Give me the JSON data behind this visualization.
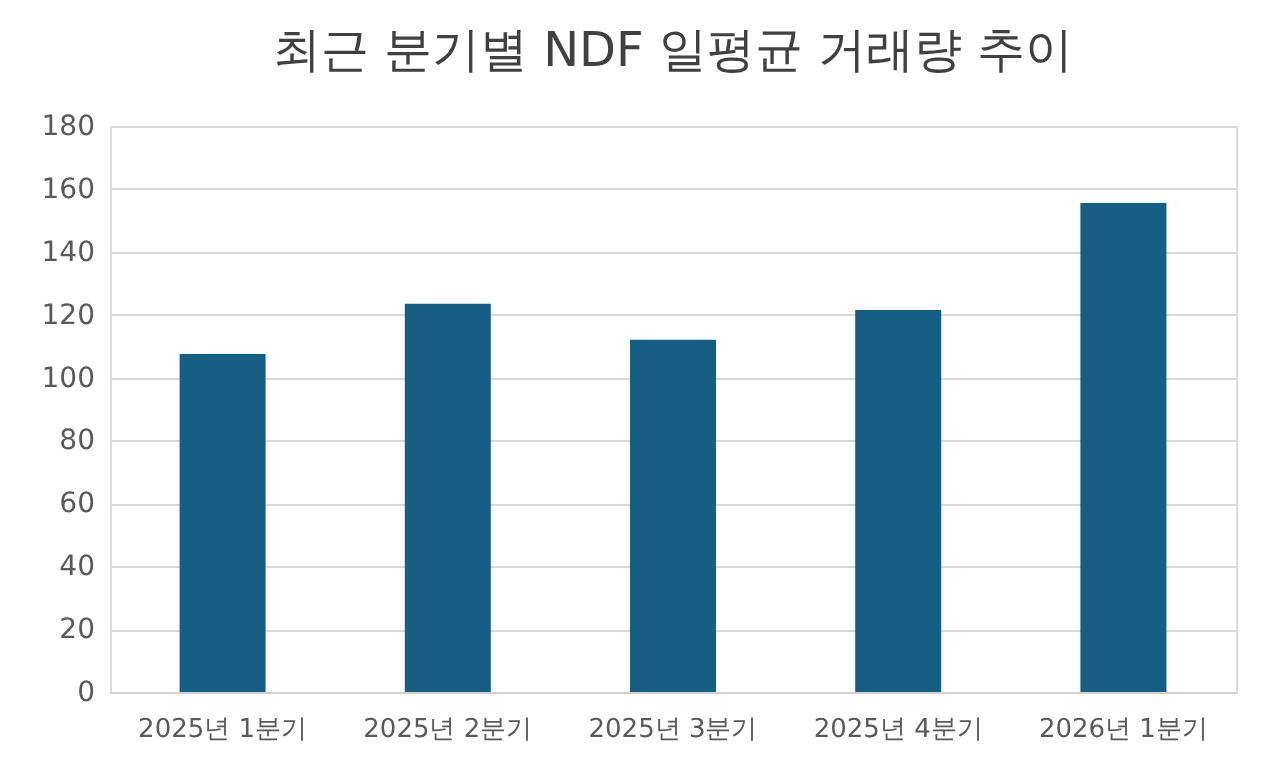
{
  "chart_data": {
    "type": "bar",
    "title": "최근 분기별 NDF 일평균 거래량 추이",
    "categories": [
      "2025년 1분기",
      "2025년 2분기",
      "2025년 3분기",
      "2025년 4분기",
      "2026년 1분기"
    ],
    "values": [
      107.5,
      123.5,
      112,
      121.5,
      155.5
    ],
    "color": "#165e83",
    "ylim": [
      0,
      180
    ],
    "yticks": [
      0,
      20,
      40,
      60,
      80,
      100,
      120,
      140,
      160,
      180
    ],
    "grid": "y"
  }
}
